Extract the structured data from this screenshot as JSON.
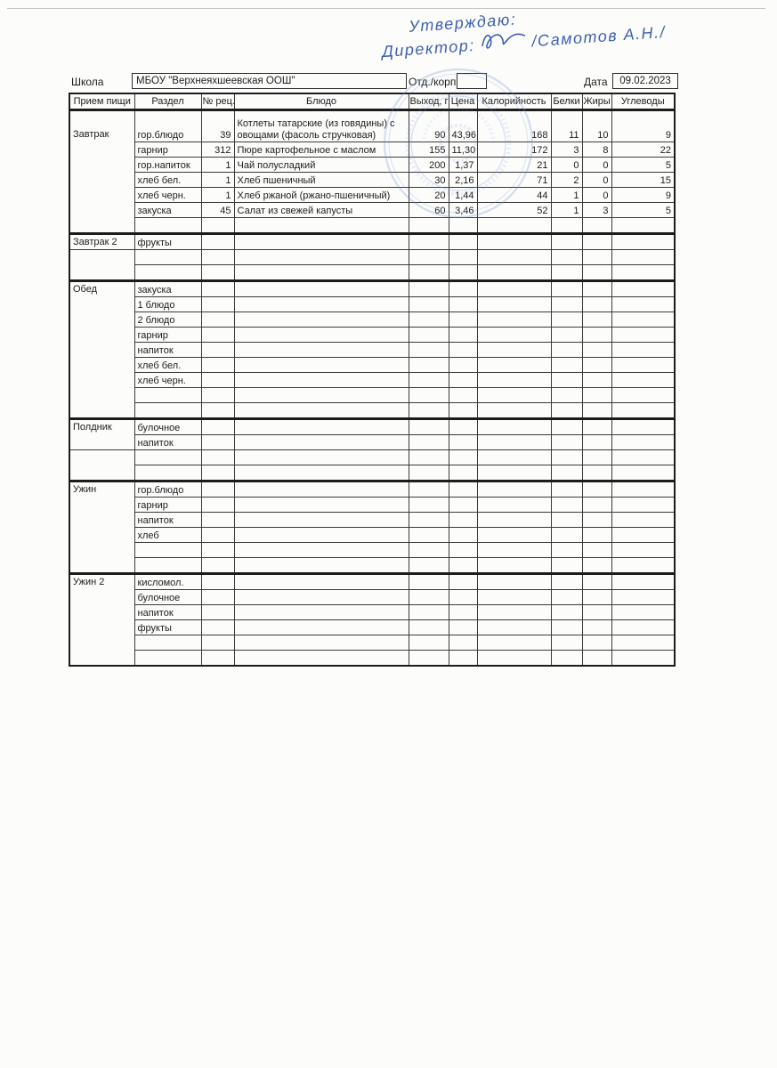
{
  "handwriting": {
    "approval": "Утверждаю:",
    "director_label": "Директор:",
    "director_name": "/Самотов А.Н./"
  },
  "form": {
    "school_label": "Школа",
    "school_value": "МБОУ \"Верхнеяхшеевская ООШ\"",
    "dept_label": "Отд./корп",
    "dept_value": "",
    "date_label": "Дата",
    "date_value": "09.02.2023"
  },
  "colors": {
    "ink_blue": "#3d5fb0",
    "stamp_blue": "#7293cf",
    "border_dark": "#1c1c1c",
    "paper": "#fcfcfb"
  },
  "table": {
    "headers": [
      "Прием пищи",
      "Раздел",
      "№ рец.",
      "Блюдо",
      "Выход, г",
      "Цена",
      "Калорийность",
      "Белки",
      "Жиры",
      "Углеводы"
    ],
    "sections": [
      {
        "meal": "Завтрак",
        "tall_first": true,
        "empty_rows": 1,
        "rows": [
          [
            "гор.блюдо",
            "39",
            "Котлеты татарские (из говядины) с овощами (фасоль стручковая)",
            "90",
            "43,96",
            "168",
            "11",
            "10",
            "9"
          ],
          [
            "гарнир",
            "312",
            "Пюре картофельное с маслом",
            "155",
            "11,30",
            "172",
            "3",
            "8",
            "22"
          ],
          [
            "гор.напиток",
            "1",
            "Чай полусладкий",
            "200",
            "1,37",
            "21",
            "0",
            "0",
            "5"
          ],
          [
            "хлеб бел.",
            "1",
            "Хлеб пшеничный",
            "30",
            "2,16",
            "71",
            "2",
            "0",
            "15"
          ],
          [
            "хлеб черн.",
            "1",
            "Хлеб ржаной (ржано-пшеничный)",
            "20",
            "1,44",
            "44",
            "1",
            "0",
            "9"
          ],
          [
            "закуска",
            "45",
            "Салат из свежей капусты",
            "60",
            "3,46",
            "52",
            "1",
            "3",
            "5"
          ]
        ]
      },
      {
        "meal": "Завтрак 2",
        "label_rows": 1,
        "empty_rows": 2,
        "rows": [
          [
            "фрукты",
            "",
            "",
            "",
            "",
            "",
            "",
            "",
            ""
          ]
        ]
      },
      {
        "meal": "Обед",
        "empty_rows": 2,
        "rows": [
          [
            "закуска",
            "",
            "",
            "",
            "",
            "",
            "",
            "",
            ""
          ],
          [
            "1 блюдо",
            "",
            "",
            "",
            "",
            "",
            "",
            "",
            ""
          ],
          [
            "2 блюдо",
            "",
            "",
            "",
            "",
            "",
            "",
            "",
            ""
          ],
          [
            "гарнир",
            "",
            "",
            "",
            "",
            "",
            "",
            "",
            ""
          ],
          [
            "напиток",
            "",
            "",
            "",
            "",
            "",
            "",
            "",
            ""
          ],
          [
            "хлеб бел.",
            "",
            "",
            "",
            "",
            "",
            "",
            "",
            ""
          ],
          [
            "хлеб черн.",
            "",
            "",
            "",
            "",
            "",
            "",
            "",
            ""
          ]
        ]
      },
      {
        "meal": "Полдник",
        "label_rows": 2,
        "empty_rows": 2,
        "rows": [
          [
            "булочное",
            "",
            "",
            "",
            "",
            "",
            "",
            "",
            ""
          ],
          [
            "напиток",
            "",
            "",
            "",
            "",
            "",
            "",
            "",
            ""
          ]
        ]
      },
      {
        "meal": "Ужин",
        "empty_rows": 2,
        "rows": [
          [
            "гор.блюдо",
            "",
            "",
            "",
            "",
            "",
            "",
            "",
            ""
          ],
          [
            "гарнир",
            "",
            "",
            "",
            "",
            "",
            "",
            "",
            ""
          ],
          [
            "напиток",
            "",
            "",
            "",
            "",
            "",
            "",
            "",
            ""
          ],
          [
            "хлеб",
            "",
            "",
            "",
            "",
            "",
            "",
            "",
            ""
          ]
        ]
      },
      {
        "meal": "Ужин 2",
        "empty_rows": 2,
        "rows": [
          [
            "кисломол.",
            "",
            "",
            "",
            "",
            "",
            "",
            "",
            ""
          ],
          [
            "булочное",
            "",
            "",
            "",
            "",
            "",
            "",
            "",
            ""
          ],
          [
            "напиток",
            "",
            "",
            "",
            "",
            "",
            "",
            "",
            ""
          ],
          [
            "фрукты",
            "",
            "",
            "",
            "",
            "",
            "",
            "",
            ""
          ]
        ]
      }
    ]
  }
}
